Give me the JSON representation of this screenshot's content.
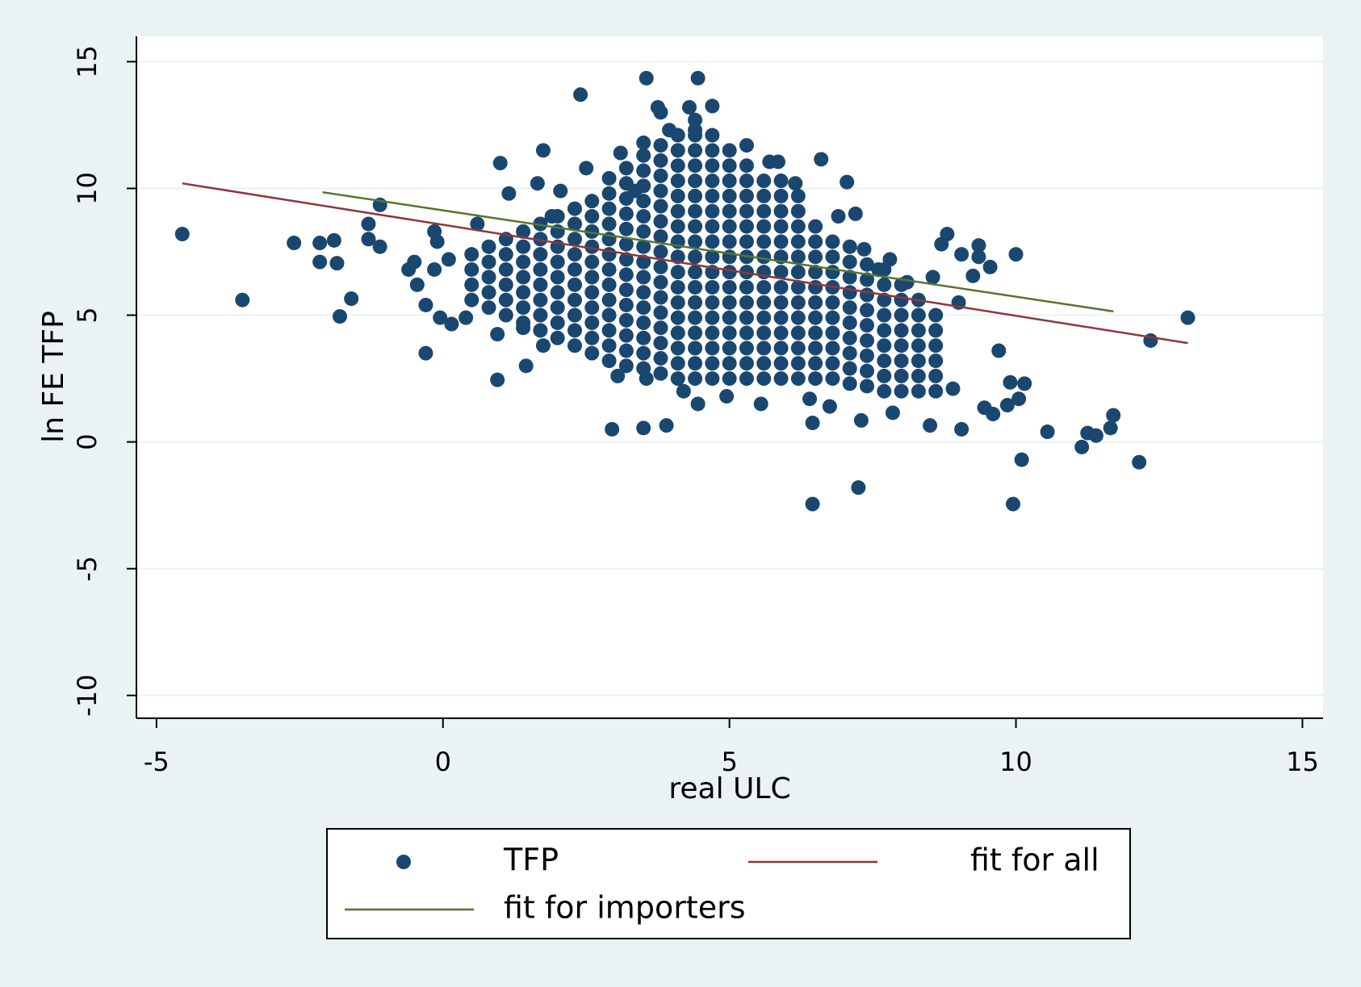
{
  "chart_data": {
    "type": "scatter",
    "xlabel": "real ULC",
    "ylabel": "ln FE TFP",
    "xlim": [
      -5.35,
      15.36
    ],
    "ylim": [
      -10.9,
      16.0
    ],
    "xticks": [
      -5,
      0,
      5,
      10,
      15
    ],
    "yticks": [
      -10,
      -5,
      0,
      5,
      10,
      15
    ],
    "grid": true,
    "legend": "bottom",
    "series": [
      {
        "name": "TFP",
        "type": "scatter",
        "color": "#1a476f",
        "x": [
          -4.55,
          -3.5,
          -2.6,
          -2.15,
          -2.15,
          -1.9,
          -1.85,
          -1.8,
          -1.6,
          -1.3,
          -1.3,
          -1.1,
          -1.1,
          -0.6,
          -0.5,
          -0.45,
          -0.3,
          -0.3,
          -0.15,
          -0.15,
          -0.1,
          -0.05,
          0.1,
          0.15,
          0.4,
          0.6,
          0.95,
          0.95,
          1.0,
          1.15,
          1.4,
          1.45,
          1.65,
          1.75,
          1.75,
          1.9,
          2.05,
          2.4,
          2.5,
          2.95,
          3.05,
          3.1,
          3.35,
          3.5,
          3.55,
          3.55,
          3.5,
          3.75,
          3.8,
          3.9,
          3.95,
          4.2,
          4.3,
          4.4,
          4.45,
          4.45,
          4.7,
          4.95,
          5.3,
          5.55,
          5.7,
          5.85,
          6.15,
          6.4,
          6.45,
          6.45,
          6.6,
          6.75,
          6.9,
          7.05,
          7.2,
          7.25,
          7.3,
          7.35,
          7.6,
          7.8,
          7.85,
          8.1,
          8.5,
          8.55,
          8.7,
          8.8,
          8.9,
          9.0,
          9.05,
          9.05,
          9.25,
          9.35,
          9.35,
          9.55,
          9.45,
          9.6,
          9.7,
          9.85,
          9.9,
          9.95,
          10.0,
          10.05,
          10.15,
          10.1,
          10.55,
          11.15,
          11.25,
          11.4,
          11.65,
          11.7,
          12.15,
          12.35,
          13.0,
          0.5,
          0.5,
          0.5,
          0.5,
          0.8,
          0.8,
          0.8,
          0.8,
          0.8,
          1.1,
          1.1,
          1.1,
          1.1,
          1.1,
          1.1,
          1.4,
          1.4,
          1.4,
          1.4,
          1.4,
          1.4,
          1.4,
          1.7,
          1.7,
          1.7,
          1.7,
          1.7,
          1.7,
          1.7,
          1.7,
          2.0,
          2.0,
          2.0,
          2.0,
          2.0,
          2.0,
          2.0,
          2.0,
          2.0,
          2.3,
          2.3,
          2.3,
          2.3,
          2.3,
          2.3,
          2.3,
          2.3,
          2.3,
          2.3,
          2.6,
          2.6,
          2.6,
          2.6,
          2.6,
          2.6,
          2.6,
          2.6,
          2.6,
          2.6,
          2.6,
          2.9,
          2.9,
          2.9,
          2.9,
          2.9,
          2.9,
          2.9,
          2.9,
          2.9,
          2.9,
          2.9,
          2.9,
          2.9,
          3.2,
          3.2,
          3.2,
          3.2,
          3.2,
          3.2,
          3.2,
          3.2,
          3.2,
          3.2,
          3.2,
          3.2,
          3.2,
          3.2,
          3.5,
          3.5,
          3.5,
          3.5,
          3.5,
          3.5,
          3.5,
          3.5,
          3.5,
          3.5,
          3.5,
          3.5,
          3.5,
          3.5,
          3.5,
          3.8,
          3.8,
          3.8,
          3.8,
          3.8,
          3.8,
          3.8,
          3.8,
          3.8,
          3.8,
          3.8,
          3.8,
          3.8,
          3.8,
          3.8,
          3.8,
          4.1,
          4.1,
          4.1,
          4.1,
          4.1,
          4.1,
          4.1,
          4.1,
          4.1,
          4.1,
          4.1,
          4.1,
          4.1,
          4.1,
          4.1,
          4.1,
          4.1,
          4.4,
          4.4,
          4.4,
          4.4,
          4.4,
          4.4,
          4.4,
          4.4,
          4.4,
          4.4,
          4.4,
          4.4,
          4.4,
          4.4,
          4.4,
          4.4,
          4.4,
          4.4,
          4.7,
          4.7,
          4.7,
          4.7,
          4.7,
          4.7,
          4.7,
          4.7,
          4.7,
          4.7,
          4.7,
          4.7,
          4.7,
          4.7,
          4.7,
          4.7,
          4.7,
          5.0,
          5.0,
          5.0,
          5.0,
          5.0,
          5.0,
          5.0,
          5.0,
          5.0,
          5.0,
          5.0,
          5.0,
          5.0,
          5.0,
          5.0,
          5.0,
          5.3,
          5.3,
          5.3,
          5.3,
          5.3,
          5.3,
          5.3,
          5.3,
          5.3,
          5.3,
          5.3,
          5.3,
          5.3,
          5.3,
          5.3,
          5.6,
          5.6,
          5.6,
          5.6,
          5.6,
          5.6,
          5.6,
          5.6,
          5.6,
          5.6,
          5.6,
          5.6,
          5.6,
          5.6,
          5.9,
          5.9,
          5.9,
          5.9,
          5.9,
          5.9,
          5.9,
          5.9,
          5.9,
          5.9,
          5.9,
          5.9,
          5.9,
          5.9,
          6.2,
          6.2,
          6.2,
          6.2,
          6.2,
          6.2,
          6.2,
          6.2,
          6.2,
          6.2,
          6.2,
          6.2,
          6.2,
          6.5,
          6.5,
          6.5,
          6.5,
          6.5,
          6.5,
          6.5,
          6.5,
          6.5,
          6.5,
          6.5,
          6.8,
          6.8,
          6.8,
          6.8,
          6.8,
          6.8,
          6.8,
          6.8,
          6.8,
          6.8,
          7.1,
          7.1,
          7.1,
          7.1,
          7.1,
          7.1,
          7.1,
          7.1,
          7.1,
          7.1,
          7.4,
          7.4,
          7.4,
          7.4,
          7.4,
          7.4,
          7.4,
          7.4,
          7.4,
          7.7,
          7.7,
          7.7,
          7.7,
          7.7,
          7.7,
          7.7,
          7.7,
          7.7,
          8.0,
          8.0,
          8.0,
          8.0,
          8.0,
          8.0,
          8.0,
          8.0,
          8.3,
          8.3,
          8.3,
          8.3,
          8.3,
          8.3,
          8.3,
          8.6,
          8.6,
          8.6,
          8.6,
          8.6,
          8.6
        ],
        "values": [
          8.2,
          5.6,
          7.85,
          7.85,
          7.1,
          7.95,
          7.05,
          4.95,
          5.65,
          8.6,
          8.0,
          9.35,
          7.7,
          6.8,
          7.1,
          6.2,
          5.4,
          3.5,
          6.8,
          8.3,
          7.9,
          4.9,
          7.2,
          4.65,
          4.9,
          8.6,
          2.45,
          4.25,
          11.0,
          9.8,
          4.5,
          3.0,
          10.2,
          11.5,
          3.8,
          8.9,
          9.9,
          13.7,
          10.8,
          0.5,
          2.6,
          11.4,
          9.9,
          11.8,
          14.35,
          2.5,
          0.55,
          13.2,
          13.0,
          0.65,
          12.3,
          2.0,
          13.2,
          12.3,
          14.35,
          1.5,
          13.25,
          1.8,
          11.7,
          1.5,
          11.05,
          11.05,
          10.2,
          1.7,
          0.75,
          -2.45,
          11.15,
          1.4,
          8.9,
          10.25,
          9.0,
          -1.8,
          0.85,
          7.6,
          6.8,
          7.2,
          1.15,
          6.3,
          0.65,
          6.5,
          7.8,
          8.2,
          2.1,
          5.5,
          0.5,
          7.4,
          6.55,
          7.3,
          7.75,
          6.9,
          1.35,
          1.1,
          3.6,
          1.45,
          2.35,
          -2.45,
          7.4,
          1.7,
          2.3,
          -0.7,
          0.4,
          -0.2,
          0.35,
          0.25,
          0.55,
          1.05,
          -0.8,
          4.0,
          4.9,
          5.6,
          6.2,
          6.8,
          7.4,
          5.3,
          5.9,
          6.5,
          7.1,
          7.7,
          5.0,
          5.6,
          6.2,
          6.8,
          7.4,
          8.0,
          4.7,
          5.3,
          5.9,
          6.5,
          7.1,
          7.7,
          8.3,
          4.4,
          5.0,
          5.6,
          6.2,
          6.8,
          7.4,
          8.0,
          8.6,
          4.1,
          4.7,
          5.3,
          5.9,
          6.5,
          7.1,
          7.7,
          8.3,
          8.9,
          3.8,
          4.4,
          5.0,
          5.6,
          6.2,
          6.8,
          7.4,
          8.0,
          8.6,
          9.2,
          3.5,
          4.1,
          4.7,
          5.3,
          5.9,
          6.5,
          7.1,
          7.7,
          8.3,
          8.9,
          9.5,
          3.2,
          3.8,
          4.4,
          5.0,
          5.6,
          6.2,
          6.8,
          7.4,
          8.0,
          8.6,
          9.2,
          9.8,
          10.4,
          3.0,
          3.6,
          4.2,
          4.8,
          5.4,
          6.0,
          6.6,
          7.2,
          7.8,
          8.4,
          9.0,
          9.6,
          10.2,
          10.8,
          2.9,
          3.5,
          4.1,
          4.7,
          5.3,
          5.9,
          6.5,
          7.1,
          7.7,
          8.3,
          8.9,
          9.5,
          10.1,
          10.7,
          11.3,
          2.7,
          3.3,
          3.9,
          4.5,
          5.1,
          5.7,
          6.3,
          6.9,
          7.5,
          8.1,
          8.7,
          9.3,
          9.9,
          10.5,
          11.1,
          11.7,
          2.5,
          3.1,
          3.7,
          4.3,
          4.9,
          5.5,
          6.1,
          6.7,
          7.3,
          7.9,
          8.5,
          9.1,
          9.7,
          10.3,
          10.9,
          11.5,
          12.1,
          2.5,
          3.1,
          3.7,
          4.3,
          4.9,
          5.5,
          6.1,
          6.7,
          7.3,
          7.9,
          8.5,
          9.1,
          9.7,
          10.3,
          10.9,
          11.5,
          12.1,
          12.7,
          2.5,
          3.1,
          3.7,
          4.3,
          4.9,
          5.5,
          6.1,
          6.7,
          7.3,
          7.9,
          8.5,
          9.1,
          9.7,
          10.3,
          10.9,
          11.5,
          12.1,
          2.5,
          3.1,
          3.7,
          4.3,
          4.9,
          5.5,
          6.1,
          6.7,
          7.3,
          7.9,
          8.5,
          9.1,
          9.7,
          10.3,
          10.9,
          11.5,
          2.5,
          3.1,
          3.7,
          4.3,
          4.9,
          5.5,
          6.1,
          6.7,
          7.3,
          7.9,
          8.5,
          9.1,
          9.7,
          10.3,
          10.9,
          2.5,
          3.1,
          3.7,
          4.3,
          4.9,
          5.5,
          6.1,
          6.7,
          7.3,
          7.9,
          8.5,
          9.1,
          9.7,
          10.3,
          2.5,
          3.1,
          3.7,
          4.3,
          4.9,
          5.5,
          6.1,
          6.7,
          7.3,
          7.9,
          8.5,
          9.1,
          9.7,
          10.3,
          2.5,
          3.1,
          3.7,
          4.3,
          4.9,
          5.5,
          6.1,
          6.7,
          7.3,
          7.9,
          8.5,
          9.1,
          9.7,
          2.5,
          3.1,
          3.7,
          4.3,
          4.9,
          5.5,
          6.1,
          6.7,
          7.3,
          7.9,
          8.5,
          2.5,
          3.1,
          3.7,
          4.3,
          4.9,
          5.5,
          6.1,
          6.7,
          7.3,
          7.9,
          2.3,
          2.9,
          3.5,
          4.1,
          4.7,
          5.3,
          5.9,
          6.5,
          7.1,
          7.7,
          2.2,
          2.8,
          3.4,
          4.0,
          4.6,
          5.2,
          5.8,
          6.4,
          7.0,
          2.0,
          2.6,
          3.2,
          3.8,
          4.4,
          5.0,
          5.6,
          6.2,
          6.8,
          2.0,
          2.6,
          3.2,
          3.8,
          4.4,
          5.0,
          5.6,
          6.2,
          2.0,
          2.6,
          3.2,
          3.8,
          4.4,
          5.0,
          5.6,
          2.0,
          2.6,
          3.2,
          3.8,
          4.4,
          5.0
        ]
      },
      {
        "name": "fit for all",
        "type": "line",
        "color": "#90353b",
        "x": [
          -4.55,
          13.0
        ],
        "values": [
          10.2,
          3.9
        ]
      },
      {
        "name": "fit for importers",
        "type": "line",
        "color": "#55752f",
        "x": [
          -2.1,
          11.7
        ],
        "values": [
          9.85,
          5.15
        ]
      }
    ]
  }
}
